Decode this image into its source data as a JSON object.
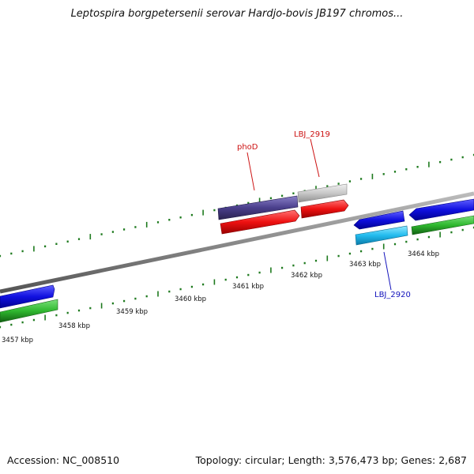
{
  "title": "Leptospira borgpetersenii serovar Hardjo-bovis JB197 chromos...",
  "footer": {
    "accession": "Accession: NC_008510",
    "summary": "Topology: circular; Length: 3,576,473 bp; Genes: 2,687"
  },
  "colors": {
    "backbone": "#8a8a8a",
    "ticks": "#1e7a1e",
    "gene_blue": "#1010e0",
    "gene_green": "#2fb82f",
    "gene_red": "#ee1111",
    "gene_purple": "#4a3f8c",
    "gene_grey": "#c8c8c8",
    "gene_cyan": "#22bbee",
    "label_red": "#cc1111",
    "label_blue": "#1111bb"
  },
  "kbp_labels": [
    "3457 kbp",
    "3458 kbp",
    "3459 kbp",
    "3460 kbp",
    "3461 kbp",
    "3462 kbp",
    "3463 kbp",
    "3464 kbp"
  ],
  "gene_labels": {
    "phoD": "phoD",
    "lbj_2919": "LBJ_2919",
    "lbj_2920": "LBJ_2920"
  }
}
